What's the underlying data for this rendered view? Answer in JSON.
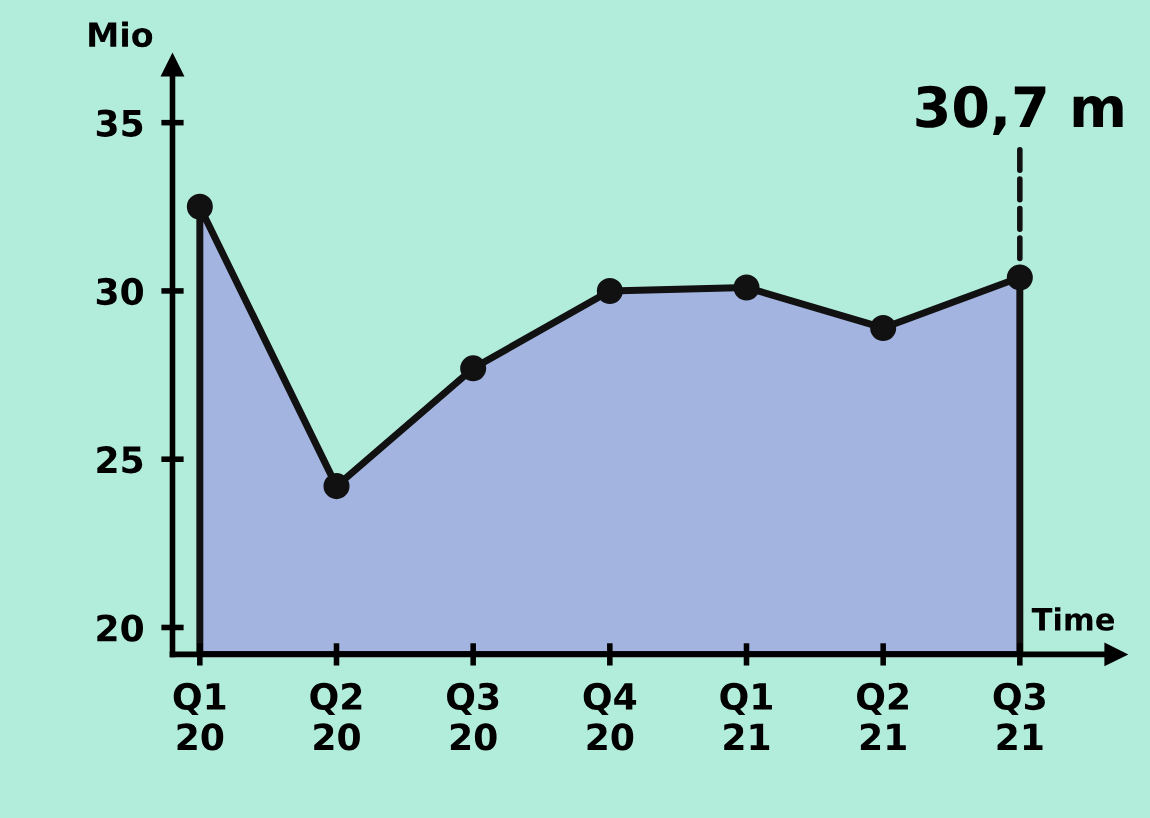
{
  "chart_data": {
    "type": "area",
    "xlabel": "Time",
    "ylabel": "Mio",
    "categories": [
      "Q1\n20",
      "Q2\n20",
      "Q3\n20",
      "Q4\n20",
      "Q1\n21",
      "Q2\n21",
      "Q3\n21"
    ],
    "series": [
      {
        "color": "#a3b4e0",
        "values": [
          32.5,
          24.2,
          27.7,
          30.0,
          30.1,
          28.9,
          30.4
        ]
      }
    ],
    "ylim": [
      19.2,
      36.7
    ],
    "yticks": [
      20,
      25,
      30,
      35
    ],
    "annotations": [
      {
        "text": "30,7 m",
        "x": "Q3\n21",
        "y": 30.4
      }
    ],
    "marker": "circle",
    "grid": false
  }
}
